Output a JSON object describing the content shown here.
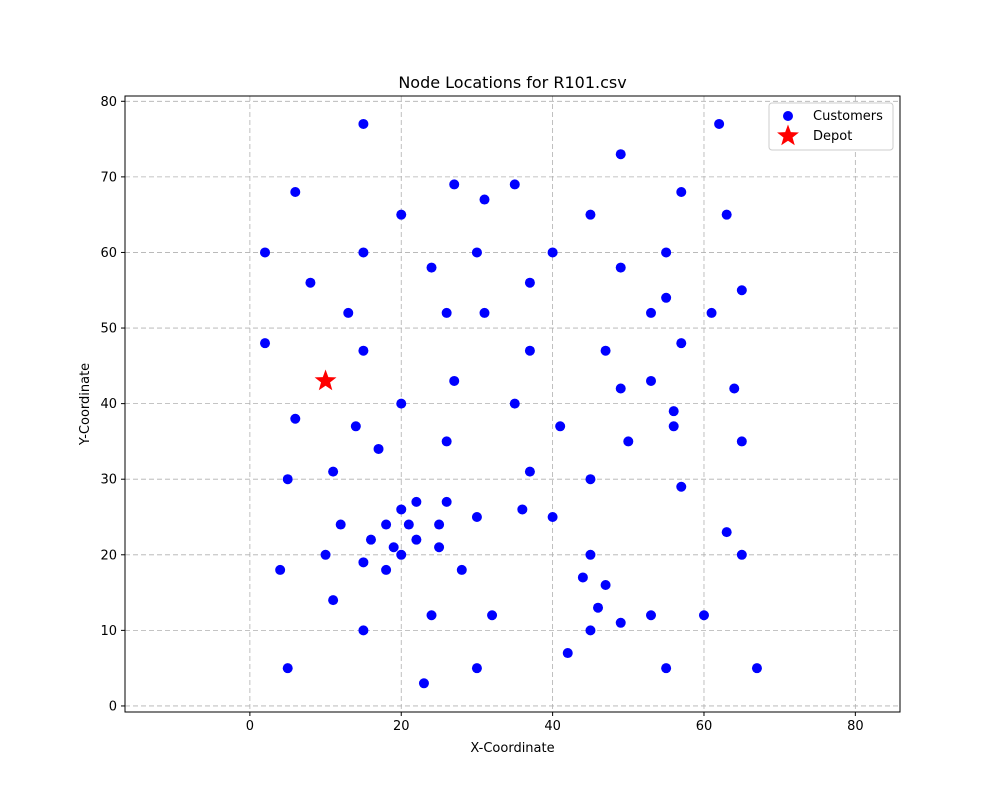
{
  "chart_data": {
    "type": "scatter",
    "title": "Node Locations for R101.csv",
    "xlabel": "X-Coordinate",
    "ylabel": "Y-Coordinate",
    "xlim": [
      -16.5,
      85.9
    ],
    "ylim": [
      -0.8,
      80.7
    ],
    "xticks": [
      0,
      20,
      40,
      60,
      80
    ],
    "yticks": [
      0,
      10,
      20,
      30,
      40,
      50,
      60,
      70,
      80
    ],
    "grid": true,
    "legend_position": "top-right",
    "series": [
      {
        "name": "Customers",
        "marker": "circle",
        "color": "#0000ff",
        "points": [
          [
            15,
            77
          ],
          [
            62,
            77
          ],
          [
            49,
            73
          ],
          [
            6,
            68
          ],
          [
            27,
            69
          ],
          [
            35,
            69
          ],
          [
            31,
            67
          ],
          [
            57,
            68
          ],
          [
            20,
            65
          ],
          [
            45,
            65
          ],
          [
            63,
            65
          ],
          [
            2,
            60
          ],
          [
            15,
            60
          ],
          [
            30,
            60
          ],
          [
            40,
            60
          ],
          [
            55,
            60
          ],
          [
            24,
            58
          ],
          [
            49,
            58
          ],
          [
            8,
            56
          ],
          [
            37,
            56
          ],
          [
            65,
            55
          ],
          [
            55,
            54
          ],
          [
            13,
            52
          ],
          [
            26,
            52
          ],
          [
            31,
            52
          ],
          [
            53,
            52
          ],
          [
            61,
            52
          ],
          [
            2,
            48
          ],
          [
            57,
            48
          ],
          [
            15,
            47
          ],
          [
            37,
            47
          ],
          [
            47,
            47
          ],
          [
            27,
            43
          ],
          [
            53,
            43
          ],
          [
            49,
            42
          ],
          [
            64,
            42
          ],
          [
            20,
            40
          ],
          [
            35,
            40
          ],
          [
            56,
            39
          ],
          [
            6,
            38
          ],
          [
            14,
            37
          ],
          [
            41,
            37
          ],
          [
            56,
            37
          ],
          [
            26,
            35
          ],
          [
            50,
            35
          ],
          [
            65,
            35
          ],
          [
            17,
            34
          ],
          [
            11,
            31
          ],
          [
            37,
            31
          ],
          [
            5,
            30
          ],
          [
            45,
            30
          ],
          [
            57,
            29
          ],
          [
            22,
            27
          ],
          [
            26,
            27
          ],
          [
            20,
            26
          ],
          [
            36,
            26
          ],
          [
            30,
            25
          ],
          [
            40,
            25
          ],
          [
            12,
            24
          ],
          [
            18,
            24
          ],
          [
            21,
            24
          ],
          [
            25,
            24
          ],
          [
            63,
            23
          ],
          [
            16,
            22
          ],
          [
            22,
            22
          ],
          [
            19,
            21
          ],
          [
            25,
            21
          ],
          [
            10,
            20
          ],
          [
            20,
            20
          ],
          [
            45,
            20
          ],
          [
            65,
            20
          ],
          [
            15,
            19
          ],
          [
            4,
            18
          ],
          [
            18,
            18
          ],
          [
            28,
            18
          ],
          [
            44,
            17
          ],
          [
            47,
            16
          ],
          [
            11,
            14
          ],
          [
            46,
            13
          ],
          [
            24,
            12
          ],
          [
            32,
            12
          ],
          [
            53,
            12
          ],
          [
            60,
            12
          ],
          [
            49,
            11
          ],
          [
            15,
            10
          ],
          [
            45,
            10
          ],
          [
            42,
            7
          ],
          [
            5,
            5
          ],
          [
            30,
            5
          ],
          [
            55,
            5
          ],
          [
            67,
            5
          ],
          [
            23,
            3
          ]
        ]
      },
      {
        "name": "Depot",
        "marker": "star",
        "color": "#ff0000",
        "points": [
          [
            10,
            43
          ]
        ]
      }
    ]
  }
}
